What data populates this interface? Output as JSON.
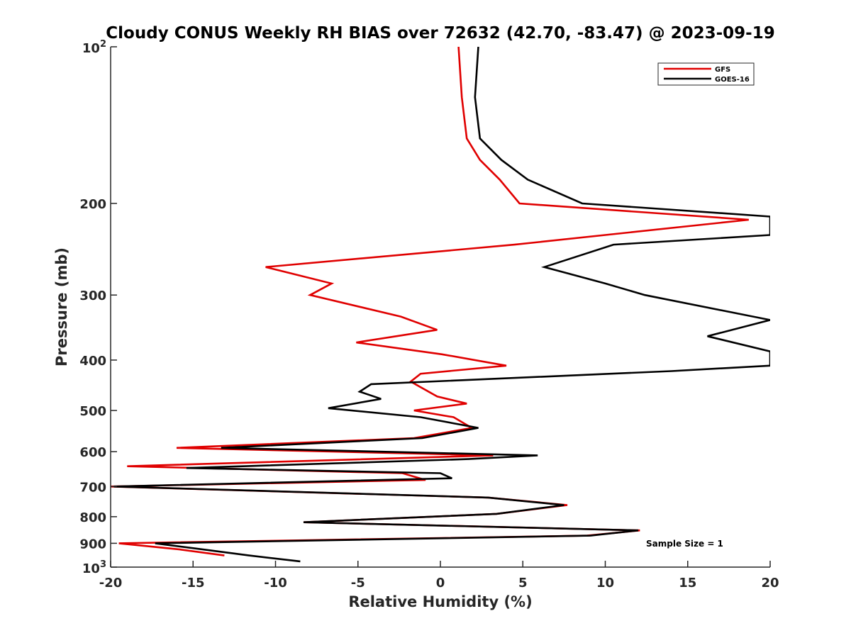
{
  "chart_data": {
    "type": "line",
    "title": "Cloudy CONUS Weekly RH BIAS over 72632 (42.70, -83.47) @ 2023-09-19",
    "xlabel": "Relative Humidity (%)",
    "ylabel": "Pressure (mb)",
    "xlim": [
      -20,
      20
    ],
    "ylim": [
      1000,
      100
    ],
    "y_scale": "log",
    "y_reversed": true,
    "grid": false,
    "legend_position": "top-right",
    "x_ticks": [
      "-20",
      "-15",
      "-10",
      "-5",
      "0",
      "5",
      "10",
      "15",
      "20"
    ],
    "x_tick_values": [
      -20,
      -15,
      -10,
      -5,
      0,
      5,
      10,
      15,
      20
    ],
    "y_ticks": [
      {
        "value": 100,
        "base": "10",
        "exp": "2"
      },
      {
        "value": 200,
        "label": "200"
      },
      {
        "value": 300,
        "label": "300"
      },
      {
        "value": 400,
        "label": "400"
      },
      {
        "value": 500,
        "label": "500"
      },
      {
        "value": 600,
        "label": "600"
      },
      {
        "value": 700,
        "label": "700"
      },
      {
        "value": 800,
        "label": "800"
      },
      {
        "value": 900,
        "label": "900"
      },
      {
        "value": 1000,
        "base": "10",
        "exp": "3"
      }
    ],
    "annotation": "Sample Size = 1",
    "series": [
      {
        "name": "GFS",
        "color": "#e00000",
        "points": [
          [
            1.1,
            100
          ],
          [
            1.3,
            125
          ],
          [
            1.6,
            150
          ],
          [
            2.4,
            165
          ],
          [
            3.6,
            180
          ],
          [
            4.8,
            200
          ],
          [
            18.7,
            215
          ],
          [
            4.5,
            240
          ],
          [
            -10.6,
            265
          ],
          [
            -6.6,
            285
          ],
          [
            -7.9,
            300
          ],
          [
            -2.4,
            330
          ],
          [
            -0.2,
            350
          ],
          [
            -5.1,
            370
          ],
          [
            0.1,
            390
          ],
          [
            4.0,
            410
          ],
          [
            -1.2,
            425
          ],
          [
            -1.8,
            440
          ],
          [
            -0.2,
            470
          ],
          [
            1.6,
            485
          ],
          [
            -1.6,
            500
          ],
          [
            0.8,
            515
          ],
          [
            1.9,
            540
          ],
          [
            -1.6,
            565
          ],
          [
            -16.0,
            590
          ],
          [
            3.2,
            610
          ],
          [
            -19.0,
            640
          ],
          [
            -2.3,
            660
          ],
          [
            -0.9,
            680
          ],
          [
            -20.0,
            700
          ],
          [
            2.9,
            735
          ],
          [
            7.7,
            760
          ],
          [
            3.4,
            790
          ],
          [
            -8.3,
            820
          ],
          [
            12.1,
            850
          ],
          [
            8.9,
            870
          ],
          [
            -19.5,
            900
          ],
          [
            -15.8,
            925
          ],
          [
            -13.1,
            950
          ]
        ]
      },
      {
        "name": "GOES-16",
        "color": "#000000",
        "points": [
          [
            2.3,
            100
          ],
          [
            2.1,
            125
          ],
          [
            2.4,
            150
          ],
          [
            3.7,
            165
          ],
          [
            5.3,
            180
          ],
          [
            8.6,
            200
          ],
          [
            20.0,
            212
          ],
          [
            20.0,
            230
          ],
          [
            10.5,
            240
          ],
          [
            6.3,
            265
          ],
          [
            10.0,
            285
          ],
          [
            12.4,
            300
          ],
          [
            20.0,
            335
          ],
          [
            16.2,
            360
          ],
          [
            20.0,
            385
          ],
          [
            20.0,
            410
          ],
          [
            14.0,
            420
          ],
          [
            -4.2,
            445
          ],
          [
            -4.9,
            460
          ],
          [
            -3.6,
            475
          ],
          [
            -6.8,
            495
          ],
          [
            -1.2,
            515
          ],
          [
            2.3,
            540
          ],
          [
            -1.1,
            565
          ],
          [
            -13.3,
            590
          ],
          [
            5.9,
            610
          ],
          [
            1.7,
            620
          ],
          [
            -15.4,
            645
          ],
          [
            0.0,
            660
          ],
          [
            0.7,
            675
          ],
          [
            -19.8,
            700
          ],
          [
            2.9,
            735
          ],
          [
            7.5,
            760
          ],
          [
            3.4,
            790
          ],
          [
            -8.3,
            820
          ],
          [
            12.0,
            850
          ],
          [
            9.1,
            870
          ],
          [
            -17.3,
            900
          ],
          [
            -14.4,
            925
          ],
          [
            -11.6,
            950
          ],
          [
            -8.5,
            975
          ]
        ]
      }
    ]
  }
}
